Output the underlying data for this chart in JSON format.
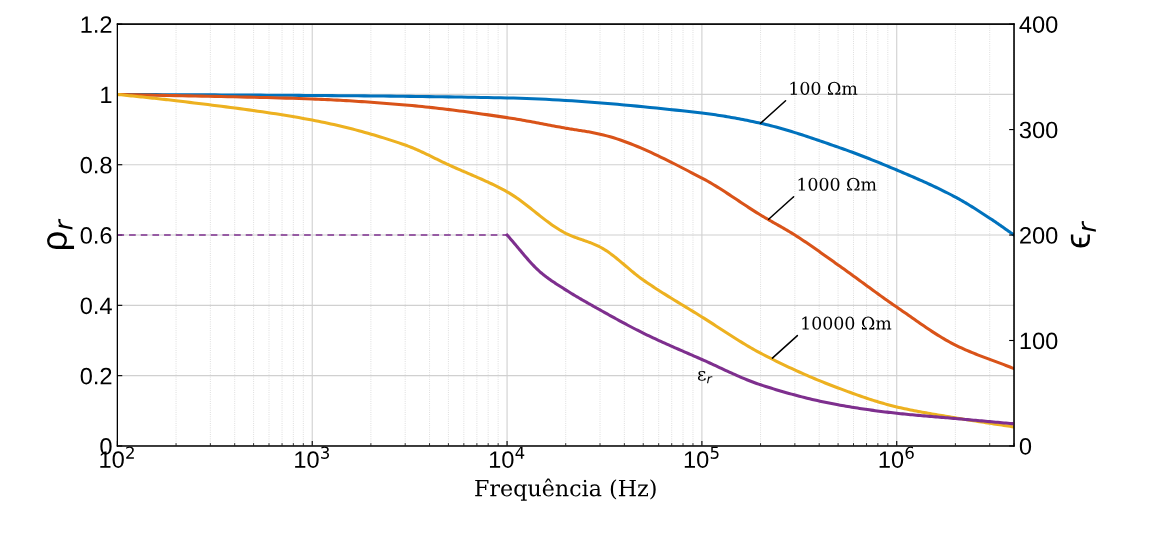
{
  "chart_data": {
    "type": "line",
    "xlabel": "Frequência (Hz)",
    "ylabel": "ρ$_{r}$",
    "y2label": "ϵ$_{r}$",
    "log": "x",
    "grid": true,
    "line_style": "solid",
    "xlim": [
      100,
      4000000
    ],
    "xticks": [
      {
        "value": 100,
        "label": "10$^{2}$"
      },
      {
        "value": 1000,
        "label": "10$^{3}$"
      },
      {
        "value": 10000,
        "label": "10$^{4}$"
      },
      {
        "value": 100000,
        "label": "10$^{5}$"
      },
      {
        "value": 1000000,
        "label": "10$^{6}$"
      }
    ],
    "ylim": [
      0,
      1.2
    ],
    "yticks": [
      0,
      0.2,
      0.4,
      0.6,
      0.8,
      1,
      1.2
    ],
    "y2lim": [
      0,
      400
    ],
    "y2ticks": [
      0,
      100,
      200,
      300,
      400
    ],
    "series": [
      {
        "color": "#0072bd",
        "x": [
          100,
          1000,
          10000,
          100000,
          200000,
          500000,
          1000000,
          2000000,
          3000000,
          4000000
        ],
        "values": [
          1.0,
          0.997,
          0.99,
          0.947,
          0.918,
          0.85,
          0.785,
          0.708,
          0.648,
          0.6
        ]
      },
      {
        "color": "#d95319",
        "x": [
          100,
          1000,
          3000,
          10000,
          20000,
          30000,
          100000,
          200000,
          300000,
          500000,
          1000000,
          2000000,
          4000000
        ],
        "values": [
          1.0,
          0.987,
          0.97,
          0.934,
          0.904,
          0.887,
          0.762,
          0.657,
          0.6,
          0.515,
          0.395,
          0.287,
          0.22
        ]
      },
      {
        "color": "#edb120",
        "x": [
          100,
          200,
          1000,
          3000,
          5000,
          10000,
          20000,
          30000,
          50000,
          100000,
          200000,
          500000,
          1000000,
          2000000,
          4000000
        ],
        "values": [
          1.0,
          0.982,
          0.927,
          0.856,
          0.8,
          0.723,
          0.605,
          0.566,
          0.472,
          0.367,
          0.264,
          0.165,
          0.111,
          0.08,
          0.054
        ]
      },
      {
        "color": "#7e2f8e",
        "axis": "y2",
        "line_style": "dashed",
        "x": [
          100,
          10000
        ],
        "values": [
          200,
          200
        ]
      },
      {
        "color": "#7e2f8e",
        "axis": "y2",
        "x": [
          10000,
          15000,
          20000,
          30000,
          50000,
          100000,
          200000,
          500000,
          1000000,
          2000000,
          4000000
        ],
        "values": [
          200,
          164,
          148,
          129,
          107,
          82,
          58,
          39,
          31,
          26,
          21
        ]
      }
    ],
    "annotations": [
      {
        "text": "100 Ωm",
        "x": 200000,
        "y": 0.918
      },
      {
        "text": "1000 Ωm",
        "x": 220000,
        "y": 0.645
      },
      {
        "text": "10000 Ωm",
        "x": 230000,
        "y": 0.25
      },
      "ε$_{r}$"
    ]
  }
}
